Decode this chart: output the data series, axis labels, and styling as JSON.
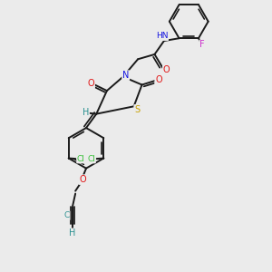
{
  "bg_color": "#ebebeb",
  "bond_color": "#1a1a1a",
  "bond_width": 1.4,
  "atoms": {
    "S": {
      "color": "#c8a000"
    },
    "N": {
      "color": "#1515e0"
    },
    "O": {
      "color": "#e01515"
    },
    "Cl": {
      "color": "#38c038"
    },
    "F": {
      "color": "#cc30cc"
    },
    "H": {
      "color": "#2a9090"
    }
  },
  "scale": 1.0
}
